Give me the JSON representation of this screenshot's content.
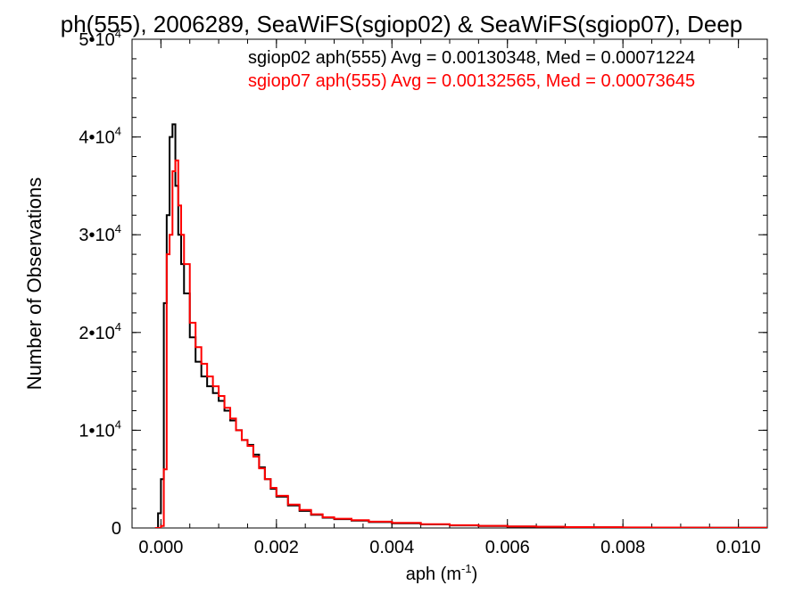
{
  "chart_data": {
    "type": "histogram",
    "title": "ph(555), 2006289, SeaWiFS(sgiop02) & SeaWiFS(sgiop07), Deep",
    "xlabel": "aph (m",
    "xlabel_sup": "-1",
    "xlabel_suffix": ")",
    "ylabel": "Number of Observations",
    "xlim": [
      -0.0005,
      0.0105
    ],
    "ylim": [
      0,
      50000
    ],
    "x_ticks": [
      {
        "value": 0.0,
        "label": "0.000"
      },
      {
        "value": 0.002,
        "label": "0.002"
      },
      {
        "value": 0.004,
        "label": "0.004"
      },
      {
        "value": 0.006,
        "label": "0.006"
      },
      {
        "value": 0.008,
        "label": "0.008"
      },
      {
        "value": 0.01,
        "label": "0.010"
      }
    ],
    "y_ticks": [
      {
        "value": 0,
        "base": "0",
        "exp": ""
      },
      {
        "value": 10000,
        "base": "1•10",
        "exp": "4"
      },
      {
        "value": 20000,
        "base": "2•10",
        "exp": "4"
      },
      {
        "value": 30000,
        "base": "3•10",
        "exp": "4"
      },
      {
        "value": 40000,
        "base": "4•10",
        "exp": "4"
      },
      {
        "value": 50000,
        "base": "5•10",
        "exp": "4"
      }
    ],
    "grid": false,
    "legend_position": "top-right",
    "series": [
      {
        "name": "sgiop02 aph(555) Avg = 0.00130348, Med = 0.00071224",
        "color": "#000000",
        "points": [
          [
            -0.0001,
            0
          ],
          [
            -5e-05,
            1500
          ],
          [
            0.0,
            5000
          ],
          [
            5e-05,
            23000
          ],
          [
            0.0001,
            32000
          ],
          [
            0.00015,
            40000
          ],
          [
            0.0002,
            41300
          ],
          [
            0.00025,
            35000
          ],
          [
            0.0003,
            30000
          ],
          [
            0.00035,
            27000
          ],
          [
            0.0004,
            24000
          ],
          [
            0.0005,
            19500
          ],
          [
            0.0006,
            17000
          ],
          [
            0.0007,
            15500
          ],
          [
            0.0008,
            14500
          ],
          [
            0.0009,
            13800
          ],
          [
            0.001,
            13000
          ],
          [
            0.0011,
            12000
          ],
          [
            0.0012,
            11000
          ],
          [
            0.0013,
            10000
          ],
          [
            0.0014,
            9000
          ],
          [
            0.0015,
            8500
          ],
          [
            0.0016,
            7500
          ],
          [
            0.0017,
            6200
          ],
          [
            0.0018,
            5000
          ],
          [
            0.0019,
            4000
          ],
          [
            0.002,
            3200
          ],
          [
            0.0022,
            2300
          ],
          [
            0.0024,
            1750
          ],
          [
            0.0026,
            1350
          ],
          [
            0.0028,
            1050
          ],
          [
            0.003,
            900
          ],
          [
            0.0033,
            750
          ],
          [
            0.0036,
            600
          ],
          [
            0.004,
            480
          ],
          [
            0.0045,
            360
          ],
          [
            0.005,
            260
          ],
          [
            0.0055,
            200
          ],
          [
            0.006,
            150
          ],
          [
            0.0065,
            110
          ],
          [
            0.007,
            85
          ],
          [
            0.0075,
            65
          ],
          [
            0.008,
            50
          ],
          [
            0.0085,
            40
          ],
          [
            0.009,
            30
          ],
          [
            0.0095,
            25
          ],
          [
            0.01,
            20
          ],
          [
            0.0105,
            15
          ]
        ]
      },
      {
        "name": "sgiop07 aph(555) Avg = 0.00132565, Med = 0.00073645",
        "color": "#ff0000",
        "points": [
          [
            -0.0001,
            0
          ],
          [
            -5e-05,
            0
          ],
          [
            0.0,
            200
          ],
          [
            5e-05,
            6000
          ],
          [
            0.0001,
            28000
          ],
          [
            0.00015,
            30000
          ],
          [
            0.0002,
            36500
          ],
          [
            0.00025,
            37600
          ],
          [
            0.0003,
            33000
          ],
          [
            0.00035,
            30000
          ],
          [
            0.0004,
            27000
          ],
          [
            0.0005,
            21000
          ],
          [
            0.0006,
            18500
          ],
          [
            0.0007,
            16800
          ],
          [
            0.0008,
            15500
          ],
          [
            0.0009,
            14500
          ],
          [
            0.001,
            13500
          ],
          [
            0.0011,
            12300
          ],
          [
            0.0012,
            11200
          ],
          [
            0.0013,
            10000
          ],
          [
            0.0014,
            9000
          ],
          [
            0.0015,
            8400
          ],
          [
            0.0016,
            7300
          ],
          [
            0.0017,
            6100
          ],
          [
            0.0018,
            5000
          ],
          [
            0.0019,
            4100
          ],
          [
            0.002,
            3300
          ],
          [
            0.0022,
            2400
          ],
          [
            0.0024,
            1850
          ],
          [
            0.0026,
            1400
          ],
          [
            0.0028,
            1100
          ],
          [
            0.003,
            950
          ],
          [
            0.0033,
            800
          ],
          [
            0.0036,
            650
          ],
          [
            0.004,
            520
          ],
          [
            0.0045,
            390
          ],
          [
            0.005,
            290
          ],
          [
            0.0055,
            220
          ],
          [
            0.006,
            165
          ],
          [
            0.0065,
            120
          ],
          [
            0.007,
            95
          ],
          [
            0.0075,
            75
          ],
          [
            0.008,
            58
          ],
          [
            0.0085,
            45
          ],
          [
            0.009,
            35
          ],
          [
            0.0095,
            28
          ],
          [
            0.01,
            22
          ],
          [
            0.0105,
            17
          ]
        ]
      }
    ]
  }
}
